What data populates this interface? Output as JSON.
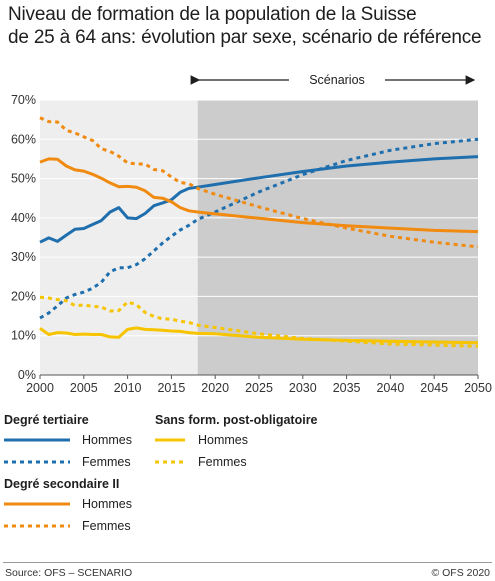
{
  "title_lines": [
    "Niveau de formation de la population de la Suisse",
    "de 25 à 64 ans: évolution par sexe, scénario de référence"
  ],
  "scenario_label": "Scénarios",
  "source": "Source: OFS – SCENARIO",
  "copyright": "© OFS 2020",
  "colors": {
    "tertiary": "#1f6fae",
    "secondary": "#f08a10",
    "none": "#f6c400",
    "observed_bg": "#eeeeee",
    "scenario_bg": "#cccccc"
  },
  "legend": {
    "groups": [
      {
        "title": "Degré tertiaire",
        "items": [
          "Hommes",
          "Femmes"
        ]
      },
      {
        "title": "Degré secondaire II",
        "items": [
          "Hommes",
          "Femmes"
        ]
      },
      {
        "title": "Sans form. post-obligatoire",
        "items": [
          "Hommes",
          "Femmes"
        ]
      }
    ]
  },
  "chart_data": {
    "type": "line",
    "x_ticks": [
      2000,
      2005,
      2010,
      2015,
      2020,
      2025,
      2030,
      2035,
      2040,
      2045,
      2050
    ],
    "y_ticks": [
      "0%",
      "10%",
      "20%",
      "30%",
      "40%",
      "50%",
      "60%",
      "70%"
    ],
    "xlim": [
      2000,
      2050
    ],
    "ylim": [
      0,
      70
    ],
    "y_unit": "%",
    "scenario_start": 2018,
    "grid": "horizontal",
    "series": [
      {
        "name": "Degré tertiaire – Hommes",
        "group": "tertiary",
        "dash": false,
        "x": [
          2000,
          2001,
          2002,
          2003,
          2004,
          2005,
          2006,
          2007,
          2008,
          2009,
          2010,
          2011,
          2012,
          2013,
          2014,
          2015,
          2016,
          2017,
          2018,
          2020,
          2025,
          2030,
          2035,
          2040,
          2045,
          2050
        ],
        "y": [
          33.8,
          34.9,
          34.0,
          35.6,
          37.1,
          37.3,
          38.3,
          39.3,
          41.5,
          42.6,
          40.0,
          39.8,
          41.1,
          43.1,
          43.8,
          44.6,
          46.5,
          47.5,
          47.8,
          48.5,
          50.2,
          51.8,
          53.2,
          54.2,
          55.0,
          55.6
        ]
      },
      {
        "name": "Degré tertiaire – Femmes",
        "group": "tertiary",
        "dash": true,
        "x": [
          2000,
          2001,
          2002,
          2003,
          2004,
          2005,
          2006,
          2007,
          2008,
          2009,
          2010,
          2011,
          2012,
          2013,
          2014,
          2015,
          2016,
          2017,
          2018,
          2020,
          2025,
          2030,
          2035,
          2040,
          2045,
          2050
        ],
        "y": [
          14.5,
          15.8,
          17.6,
          19.6,
          20.5,
          21.1,
          22.1,
          23.6,
          26.3,
          27.3,
          27.3,
          28.1,
          29.6,
          31.6,
          33.6,
          35.3,
          36.9,
          38.1,
          39.6,
          41.5,
          46.6,
          51.0,
          54.6,
          57.2,
          58.9,
          60.0
        ]
      },
      {
        "name": "Degré secondaire II – Hommes",
        "group": "secondary",
        "dash": false,
        "x": [
          2000,
          2001,
          2002,
          2003,
          2004,
          2005,
          2006,
          2007,
          2008,
          2009,
          2010,
          2011,
          2012,
          2013,
          2014,
          2015,
          2016,
          2017,
          2018,
          2020,
          2025,
          2030,
          2035,
          2040,
          2045,
          2050
        ],
        "y": [
          54.2,
          55.0,
          54.9,
          53.2,
          52.2,
          51.9,
          51.1,
          50.1,
          48.9,
          47.9,
          48.0,
          47.8,
          46.9,
          45.2,
          45.0,
          44.1,
          42.6,
          41.8,
          41.5,
          41.0,
          39.9,
          38.8,
          38.0,
          37.4,
          36.8,
          36.5
        ]
      },
      {
        "name": "Degré secondaire II – Femmes",
        "group": "secondary",
        "dash": true,
        "x": [
          2000,
          2001,
          2002,
          2003,
          2004,
          2005,
          2006,
          2007,
          2008,
          2009,
          2010,
          2011,
          2012,
          2013,
          2014,
          2015,
          2016,
          2017,
          2018,
          2020,
          2025,
          2030,
          2035,
          2040,
          2045,
          2050
        ],
        "y": [
          65.5,
          64.5,
          64.4,
          62.3,
          61.6,
          60.6,
          59.7,
          57.6,
          56.9,
          55.7,
          54.0,
          53.7,
          53.7,
          52.3,
          52.0,
          50.4,
          49.0,
          48.7,
          47.5,
          46.0,
          42.8,
          39.8,
          37.4,
          35.3,
          33.8,
          32.6
        ]
      },
      {
        "name": "Sans form. post-obligatoire – Hommes",
        "group": "none",
        "dash": false,
        "x": [
          2000,
          2001,
          2002,
          2003,
          2004,
          2005,
          2006,
          2007,
          2008,
          2009,
          2010,
          2011,
          2012,
          2013,
          2014,
          2015,
          2016,
          2017,
          2018,
          2020,
          2025,
          2030,
          2035,
          2040,
          2045,
          2050
        ],
        "y": [
          11.9,
          10.3,
          10.8,
          10.7,
          10.3,
          10.4,
          10.3,
          10.3,
          9.7,
          9.6,
          11.6,
          12.0,
          11.6,
          11.5,
          11.4,
          11.2,
          11.1,
          10.8,
          10.6,
          10.5,
          9.6,
          9.1,
          8.8,
          8.6,
          8.4,
          8.2
        ]
      },
      {
        "name": "Sans form. post-obligatoire – Femmes",
        "group": "none",
        "dash": true,
        "x": [
          2000,
          2001,
          2002,
          2003,
          2004,
          2005,
          2006,
          2007,
          2008,
          2009,
          2010,
          2011,
          2012,
          2013,
          2014,
          2015,
          2016,
          2017,
          2018,
          2020,
          2025,
          2030,
          2035,
          2040,
          2045,
          2050
        ],
        "y": [
          19.8,
          19.6,
          19.2,
          18.9,
          17.7,
          17.8,
          17.5,
          17.3,
          16.3,
          16.4,
          18.6,
          17.9,
          15.9,
          14.9,
          14.3,
          14.2,
          13.7,
          13.4,
          12.7,
          12.1,
          10.5,
          9.3,
          8.6,
          7.9,
          7.6,
          7.3
        ]
      }
    ]
  }
}
